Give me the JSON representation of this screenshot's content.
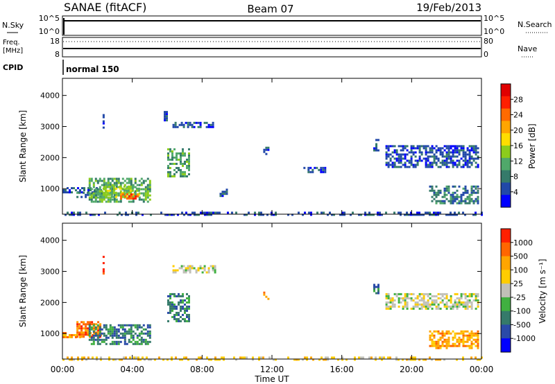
{
  "header": {
    "station": "SANAE (fitACF)",
    "beam": "Beam 07",
    "date": "19/Feb/2013"
  },
  "nsky_panel": {
    "label": "N.Sky",
    "left_ticks": [
      "10^5",
      "10^0"
    ],
    "right_label": "N.Search",
    "right_ticks": [
      "10^5",
      "10^0"
    ]
  },
  "freq_panel": {
    "label_line1": "Freq.",
    "label_line2": "[MHz]",
    "left_ticks": [
      "18",
      "8"
    ],
    "right_label": "Nave",
    "right_ticks": [
      "80",
      "0"
    ]
  },
  "cpid_panel": {
    "label": "CPID",
    "mode": "normal 150"
  },
  "x_axis": {
    "label": "Time UT",
    "ticks": [
      "00:00",
      "04:00",
      "08:00",
      "12:00",
      "16:00",
      "20:00",
      "00:00"
    ]
  },
  "chart_data": [
    {
      "type": "heatmap",
      "name": "power",
      "ylabel": "Slant Range [km]",
      "x_range": [
        0,
        24
      ],
      "ylim": [
        180,
        4550
      ],
      "y_ticks": [
        "1000",
        "2000",
        "3000",
        "4000"
      ],
      "colorbar": {
        "label": "Power [dB]",
        "ticks": [
          "4",
          "8",
          "12",
          "16",
          "20",
          "24",
          "28"
        ],
        "colors": [
          "#0000ff",
          "#2148a8",
          "#357a6a",
          "#50a86a",
          "#8ccc1c",
          "#ffdd00",
          "#ffa500",
          "#ff6a00",
          "#ff2000",
          "#e00000"
        ]
      },
      "regions": [
        {
          "x": [
            0.0,
            2.2
          ],
          "y": [
            850,
            1050
          ],
          "level": 1
        },
        {
          "x": [
            0.8,
            2.2
          ],
          "y": [
            700,
            900
          ],
          "level": 2
        },
        {
          "x": [
            1.5,
            5.0
          ],
          "y": [
            600,
            1350
          ],
          "level": 3
        },
        {
          "x": [
            2.3,
            4.4
          ],
          "y": [
            700,
            1100
          ],
          "level": 4
        },
        {
          "x": [
            3.3,
            4.3
          ],
          "y": [
            650,
            850
          ],
          "level": 7
        },
        {
          "x": [
            6.0,
            7.3
          ],
          "y": [
            1400,
            2300
          ],
          "level": 3
        },
        {
          "x": [
            6.3,
            8.7
          ],
          "y": [
            2950,
            3150
          ],
          "level": 1
        },
        {
          "x": [
            5.8,
            6.0
          ],
          "y": [
            3200,
            3500
          ],
          "level": 1
        },
        {
          "x": [
            2.3,
            2.4
          ],
          "y": [
            2900,
            3400
          ],
          "level": 1
        },
        {
          "x": [
            9.0,
            9.4
          ],
          "y": [
            750,
            1000
          ],
          "level": 1
        },
        {
          "x": [
            11.5,
            11.8
          ],
          "y": [
            2100,
            2350
          ],
          "level": 1
        },
        {
          "x": [
            13.8,
            15.0
          ],
          "y": [
            1500,
            1700
          ],
          "level": 1
        },
        {
          "x": [
            17.8,
            18.1
          ],
          "y": [
            2200,
            2600
          ],
          "level": 1
        },
        {
          "x": [
            18.5,
            23.8
          ],
          "y": [
            1700,
            2400
          ],
          "level": 1
        },
        {
          "x": [
            21.0,
            23.8
          ],
          "y": [
            550,
            1100
          ],
          "level": 2
        },
        {
          "x": [
            0.0,
            24.0
          ],
          "y": [
            180,
            260
          ],
          "level": 1
        }
      ]
    },
    {
      "type": "heatmap",
      "name": "velocity",
      "ylabel": "Slant Range [km]",
      "x_range": [
        0,
        24
      ],
      "ylim": [
        180,
        4550
      ],
      "y_ticks": [
        "1000",
        "2000",
        "3000",
        "4000"
      ],
      "colorbar": {
        "label": "Velocity [m s⁻¹]",
        "ticks": [
          "1000",
          "500",
          "100",
          "25",
          "-25",
          "-100",
          "-500",
          "-1000"
        ],
        "colors": [
          "#0000ff",
          "#2a4aa8",
          "#357a6a",
          "#40b040",
          "#c0c0b8",
          "#ffcc00",
          "#ffa500",
          "#ff6600",
          "#ff2000"
        ]
      },
      "regions": [
        {
          "x": [
            0.0,
            2.2
          ],
          "y": [
            850,
            1050
          ],
          "level": 6
        },
        {
          "x": [
            0.8,
            2.2
          ],
          "y": [
            900,
            1400
          ],
          "level": 7
        },
        {
          "x": [
            1.5,
            5.0
          ],
          "y": [
            650,
            1300
          ],
          "level": 2
        },
        {
          "x": [
            6.0,
            7.3
          ],
          "y": [
            1400,
            2300
          ],
          "level": 2
        },
        {
          "x": [
            6.3,
            8.7
          ],
          "y": [
            2950,
            3200
          ],
          "level": 4
        },
        {
          "x": [
            2.3,
            2.4
          ],
          "y": [
            2900,
            3500
          ],
          "level": 8
        },
        {
          "x": [
            11.5,
            11.8
          ],
          "y": [
            2100,
            2350
          ],
          "level": 6
        },
        {
          "x": [
            17.8,
            18.1
          ],
          "y": [
            2300,
            2600
          ],
          "level": 2
        },
        {
          "x": [
            18.5,
            23.8
          ],
          "y": [
            1800,
            2300
          ],
          "level": 4
        },
        {
          "x": [
            21.0,
            23.8
          ],
          "y": [
            550,
            1100
          ],
          "level": 6
        },
        {
          "x": [
            0.0,
            24.0
          ],
          "y": [
            180,
            260
          ],
          "level": 5
        }
      ]
    }
  ]
}
